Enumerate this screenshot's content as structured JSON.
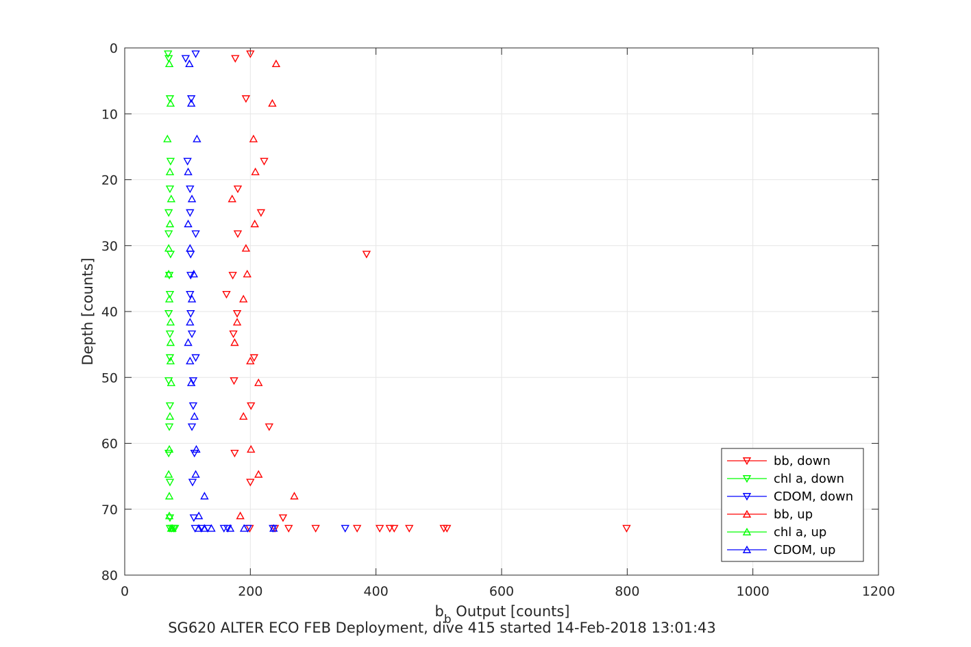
{
  "chart_data": {
    "type": "scatter",
    "title": "SG620 ALTER ECO FEB Deployment, dive 415 started 14-Feb-2018 13:01:43",
    "xlabel_main": "b",
    "xlabel_sub": "b",
    "xlabel_rest": " Output [counts]",
    "ylabel": "Depth [counts]",
    "xlim": [
      0,
      1200
    ],
    "ylim": [
      0,
      80
    ],
    "y_reversed": true,
    "grid": true,
    "legend_position": "bottom-right",
    "xticks": [
      "0",
      "200",
      "400",
      "600",
      "800",
      "1000",
      "1200"
    ],
    "yticks": [
      "0",
      "10",
      "20",
      "30",
      "40",
      "50",
      "60",
      "70",
      "80"
    ],
    "series": [
      {
        "name": "bb, down",
        "color": "#ff0000",
        "marker": "triangle-down",
        "points": [
          [
            200,
            0.9
          ],
          [
            176,
            1.6
          ],
          [
            193,
            7.7
          ],
          [
            222,
            17.2
          ],
          [
            180,
            21.4
          ],
          [
            217,
            25.0
          ],
          [
            180,
            28.2
          ],
          [
            385,
            31.3
          ],
          [
            172,
            34.5
          ],
          [
            162,
            37.4
          ],
          [
            179,
            40.3
          ],
          [
            173,
            43.4
          ],
          [
            206,
            47.0
          ],
          [
            174,
            50.5
          ],
          [
            201,
            54.3
          ],
          [
            230,
            57.5
          ],
          [
            175,
            61.5
          ],
          [
            200,
            65.9
          ],
          [
            252,
            71.3
          ],
          [
            199,
            72.9
          ],
          [
            239,
            72.9
          ],
          [
            261,
            72.9
          ],
          [
            304,
            72.9
          ],
          [
            370,
            72.9
          ],
          [
            406,
            72.9
          ],
          [
            422,
            72.9
          ],
          [
            429,
            72.9
          ],
          [
            453,
            72.9
          ],
          [
            508,
            72.9
          ],
          [
            513,
            72.9
          ],
          [
            799,
            72.9
          ]
        ]
      },
      {
        "name": "chl a, down",
        "color": "#00ff00",
        "marker": "triangle-down",
        "points": [
          [
            69,
            0.9
          ],
          [
            70,
            1.6
          ],
          [
            72,
            7.7
          ],
          [
            73,
            17.2
          ],
          [
            72,
            21.4
          ],
          [
            70,
            25.0
          ],
          [
            70,
            28.2
          ],
          [
            73,
            31.3
          ],
          [
            71,
            34.5
          ],
          [
            72,
            37.4
          ],
          [
            70,
            40.3
          ],
          [
            72,
            43.4
          ],
          [
            72,
            47.0
          ],
          [
            70,
            50.5
          ],
          [
            72,
            54.3
          ],
          [
            71,
            57.5
          ],
          [
            70,
            61.5
          ],
          [
            72,
            65.9
          ],
          [
            72,
            71.3
          ],
          [
            72,
            72.9
          ],
          [
            75,
            72.9
          ],
          [
            78,
            72.9
          ],
          [
            80,
            72.9
          ]
        ]
      },
      {
        "name": "CDOM, down",
        "color": "#0000ff",
        "marker": "triangle-down",
        "points": [
          [
            113,
            0.9
          ],
          [
            97,
            1.6
          ],
          [
            106,
            7.7
          ],
          [
            100,
            17.2
          ],
          [
            104,
            21.4
          ],
          [
            104,
            25.0
          ],
          [
            113,
            28.2
          ],
          [
            105,
            31.3
          ],
          [
            105,
            34.5
          ],
          [
            104,
            37.4
          ],
          [
            105,
            40.3
          ],
          [
            107,
            43.4
          ],
          [
            113,
            47.0
          ],
          [
            109,
            50.5
          ],
          [
            109,
            54.3
          ],
          [
            107,
            57.5
          ],
          [
            111,
            61.5
          ],
          [
            108,
            65.9
          ],
          [
            110,
            71.3
          ],
          [
            112,
            72.9
          ],
          [
            122,
            72.9
          ],
          [
            132,
            72.9
          ],
          [
            158,
            72.9
          ],
          [
            164,
            72.9
          ],
          [
            196,
            72.9
          ],
          [
            236,
            72.9
          ],
          [
            351,
            72.9
          ]
        ]
      },
      {
        "name": "bb, up",
        "color": "#ff0000",
        "marker": "triangle-up",
        "points": [
          [
            241,
            2.4
          ],
          [
            235,
            8.4
          ],
          [
            205,
            13.8
          ],
          [
            208,
            18.8
          ],
          [
            171,
            22.9
          ],
          [
            207,
            26.7
          ],
          [
            193,
            30.4
          ],
          [
            195,
            34.3
          ],
          [
            189,
            38.1
          ],
          [
            179,
            41.6
          ],
          [
            175,
            44.7
          ],
          [
            200,
            47.5
          ],
          [
            213,
            50.8
          ],
          [
            189,
            55.9
          ],
          [
            201,
            60.9
          ],
          [
            213,
            64.7
          ],
          [
            270,
            68.0
          ],
          [
            184,
            71.0
          ]
        ]
      },
      {
        "name": "chl a, up",
        "color": "#00ff00",
        "marker": "triangle-up",
        "points": [
          [
            71,
            2.4
          ],
          [
            73,
            8.4
          ],
          [
            68,
            13.8
          ],
          [
            72,
            18.8
          ],
          [
            74,
            22.9
          ],
          [
            72,
            26.7
          ],
          [
            70,
            30.4
          ],
          [
            70,
            34.3
          ],
          [
            71,
            38.1
          ],
          [
            73,
            41.6
          ],
          [
            73,
            44.7
          ],
          [
            73,
            47.5
          ],
          [
            74,
            50.8
          ],
          [
            72,
            55.9
          ],
          [
            71,
            60.9
          ],
          [
            70,
            64.7
          ],
          [
            71,
            68.0
          ],
          [
            71,
            71.0
          ],
          [
            74,
            72.9
          ],
          [
            76,
            72.9
          ]
        ]
      },
      {
        "name": "CDOM, up",
        "color": "#0000ff",
        "marker": "triangle-up",
        "points": [
          [
            103,
            2.4
          ],
          [
            106,
            8.4
          ],
          [
            115,
            13.8
          ],
          [
            101,
            18.8
          ],
          [
            107,
            22.9
          ],
          [
            101,
            26.7
          ],
          [
            104,
            30.4
          ],
          [
            110,
            34.3
          ],
          [
            107,
            38.1
          ],
          [
            104,
            41.6
          ],
          [
            101,
            44.7
          ],
          [
            104,
            47.5
          ],
          [
            106,
            50.8
          ],
          [
            111,
            55.9
          ],
          [
            114,
            60.9
          ],
          [
            113,
            64.7
          ],
          [
            127,
            68.0
          ],
          [
            118,
            71.0
          ],
          [
            118,
            72.9
          ],
          [
            127,
            72.9
          ],
          [
            138,
            72.9
          ],
          [
            168,
            72.9
          ],
          [
            190,
            72.9
          ],
          [
            237,
            72.9
          ]
        ]
      }
    ]
  }
}
